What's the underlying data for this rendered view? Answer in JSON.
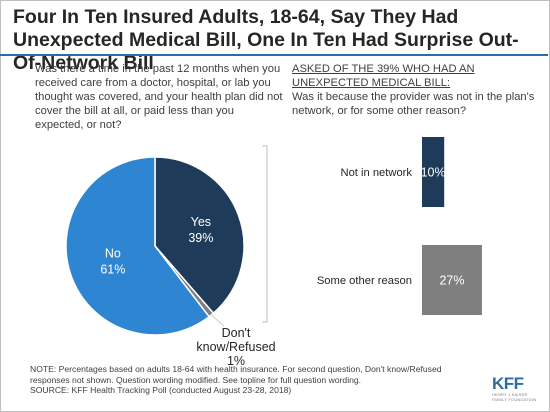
{
  "title": "Four In Ten Insured Adults, 18-64, Say They Had Unexpected Medical Bill, One In Ten Had Surprise Out-Of-Network Bill",
  "question1": "Was there a time in the past 12 months when you received care from a doctor, hospital, or lab you thought was covered, and your health plan did not cover the bill at all, or paid less than you expected, or not?",
  "question2_heading": "ASKED OF THE 39% WHO HAD AN UNEXPECTED MEDICAL BILL:",
  "question2": "Was it because the provider was not in the plan's network, or for some other reason?",
  "note_lines": [
    "NOTE: Percentages based on adults 18-64 with health insurance. For second question, Don't know/Refused",
    "responses not shown. Question wording modified. See topline for full question wording.",
    "SOURCE: KFF Health Tracking Poll (conducted August 23-28, 2018)"
  ],
  "logo": {
    "name": "KFF",
    "tagline_lines": [
      "HENRY J KAISER",
      "FAMILY FOUNDATION"
    ]
  },
  "colors": {
    "yes": "#1f3b5a",
    "no": "#2e85d1",
    "dk": "#7f7f7f",
    "bar_not_in_network": "#1f3b5a",
    "bar_other": "#7f7f7f",
    "accent": "#2e6da4"
  },
  "chart_data": [
    {
      "type": "pie",
      "slices": [
        {
          "label": "Yes",
          "value": 39,
          "value_label": "39%",
          "color": "#1f3b5a"
        },
        {
          "label": "Don't know/Refused",
          "value": 1,
          "value_label": "1%",
          "color": "#7f7f7f"
        },
        {
          "label": "No",
          "value": 61,
          "value_label": "61%",
          "color": "#2e85d1"
        }
      ]
    },
    {
      "type": "bar",
      "orientation": "horizontal",
      "categories": [
        "Not in network",
        "Some other reason"
      ],
      "values": [
        10,
        27
      ],
      "value_labels": [
        "10%",
        "27%"
      ],
      "colors": [
        "#1f3b5a",
        "#7f7f7f"
      ],
      "xlim": [
        0,
        100
      ]
    }
  ]
}
